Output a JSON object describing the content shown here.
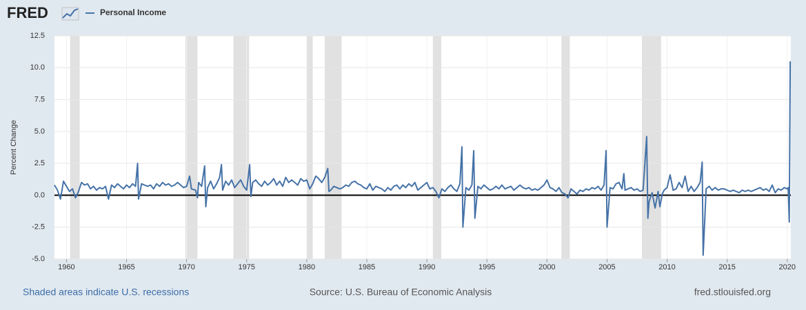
{
  "chart_data": {
    "type": "line",
    "logo": "FRED",
    "ylabel": "Percent Change",
    "note": "Shaded areas indicate U.S. recessions",
    "source": "Source: U.S. Bureau of Economic Analysis",
    "site": "fred.stlouisfed.org",
    "xlim": [
      1959.0,
      2020.3
    ],
    "xticks": [
      1960,
      1965,
      1970,
      1975,
      1980,
      1985,
      1990,
      1995,
      2000,
      2005,
      2010,
      2015,
      2020
    ],
    "ylim": [
      -5,
      12.5
    ],
    "yticks": [
      {
        "value": -5,
        "label": "-5.0"
      },
      -2.5,
      {
        "value": 0,
        "label": "0.0"
      },
      2.5,
      {
        "value": 5,
        "label": "5.0"
      },
      7.5,
      {
        "value": 10,
        "label": "10.0"
      },
      12.5
    ],
    "grid": true,
    "recession_color": "#e1e1e1",
    "recessions": [
      [
        1960.3,
        1961.1
      ],
      [
        1969.9,
        1970.9
      ],
      [
        1973.9,
        1975.2
      ],
      [
        1980.0,
        1980.5
      ],
      [
        1981.5,
        1982.9
      ],
      [
        1990.5,
        1991.2
      ],
      [
        2001.2,
        2001.9
      ],
      [
        2007.9,
        2009.5
      ]
    ],
    "x": [
      1959.0,
      1959.25,
      1959.5,
      1959.75,
      1960.0,
      1960.25,
      1960.5,
      1960.75,
      1961.0,
      1961.25,
      1961.5,
      1961.75,
      1962.0,
      1962.25,
      1962.5,
      1962.75,
      1963.0,
      1963.25,
      1963.5,
      1963.75,
      1964.0,
      1964.25,
      1964.5,
      1964.75,
      1965.0,
      1965.25,
      1965.5,
      1965.75,
      1965.92,
      1966.0,
      1966.25,
      1966.5,
      1966.75,
      1967.0,
      1967.25,
      1967.5,
      1967.75,
      1968.0,
      1968.25,
      1968.5,
      1968.75,
      1969.0,
      1969.25,
      1969.5,
      1969.75,
      1970.0,
      1970.25,
      1970.4,
      1970.75,
      1970.9,
      1971.0,
      1971.25,
      1971.5,
      1971.6,
      1971.75,
      1972.0,
      1972.25,
      1972.5,
      1972.75,
      1972.9,
      1973.0,
      1973.25,
      1973.5,
      1973.75,
      1974.0,
      1974.25,
      1974.5,
      1974.75,
      1975.0,
      1975.25,
      1975.35,
      1975.5,
      1975.75,
      1976.0,
      1976.25,
      1976.5,
      1976.75,
      1977.0,
      1977.25,
      1977.5,
      1977.75,
      1978.0,
      1978.25,
      1978.5,
      1978.75,
      1979.0,
      1979.25,
      1979.5,
      1979.75,
      1980.0,
      1980.25,
      1980.5,
      1980.75,
      1981.0,
      1981.25,
      1981.5,
      1981.75,
      1981.85,
      1982.0,
      1982.25,
      1982.5,
      1982.75,
      1983.0,
      1983.25,
      1983.5,
      1983.75,
      1984.0,
      1984.25,
      1984.5,
      1984.75,
      1985.0,
      1985.25,
      1985.5,
      1985.75,
      1986.0,
      1986.25,
      1986.5,
      1986.75,
      1987.0,
      1987.25,
      1987.5,
      1987.75,
      1988.0,
      1988.25,
      1988.5,
      1988.75,
      1989.0,
      1989.25,
      1989.5,
      1989.75,
      1990.0,
      1990.25,
      1990.5,
      1990.75,
      1991.0,
      1991.25,
      1991.5,
      1991.75,
      1992.0,
      1992.25,
      1992.5,
      1992.75,
      1992.92,
      1993.0,
      1993.25,
      1993.5,
      1993.75,
      1993.9,
      1994.0,
      1994.25,
      1994.5,
      1994.75,
      1995.0,
      1995.25,
      1995.5,
      1995.75,
      1996.0,
      1996.25,
      1996.5,
      1996.75,
      1997.0,
      1997.25,
      1997.5,
      1997.75,
      1998.0,
      1998.25,
      1998.5,
      1998.75,
      1999.0,
      1999.25,
      1999.5,
      1999.75,
      2000.0,
      2000.25,
      2000.5,
      2000.75,
      2001.0,
      2001.25,
      2001.5,
      2001.75,
      2002.0,
      2002.25,
      2002.5,
      2002.75,
      2003.0,
      2003.25,
      2003.5,
      2003.75,
      2004.0,
      2004.25,
      2004.5,
      2004.75,
      2004.92,
      2005.0,
      2005.25,
      2005.5,
      2005.75,
      2006.0,
      2006.25,
      2006.4,
      2006.5,
      2006.75,
      2007.0,
      2007.25,
      2007.5,
      2007.75,
      2008.0,
      2008.3,
      2008.4,
      2008.5,
      2008.75,
      2009.0,
      2009.25,
      2009.4,
      2009.6,
      2009.75,
      2010.0,
      2010.25,
      2010.5,
      2010.75,
      2011.0,
      2011.25,
      2011.5,
      2011.75,
      2012.0,
      2012.25,
      2012.5,
      2012.75,
      2012.92,
      2013.0,
      2013.25,
      2013.5,
      2013.75,
      2014.0,
      2014.25,
      2014.5,
      2014.75,
      2015.0,
      2015.25,
      2015.5,
      2015.75,
      2016.0,
      2016.25,
      2016.5,
      2016.75,
      2017.0,
      2017.25,
      2017.5,
      2017.75,
      2018.0,
      2018.25,
      2018.5,
      2018.75,
      2019.0,
      2019.25,
      2019.5,
      2019.75,
      2020.0,
      2020.08,
      2020.17,
      2020.25
    ],
    "series": [
      {
        "name": "Personal Income",
        "color": "#4572a7",
        "values": [
          0.8,
          0.4,
          -0.3,
          1.1,
          0.7,
          0.3,
          0.5,
          -0.2,
          0.3,
          1.0,
          0.8,
          0.9,
          0.5,
          0.7,
          0.4,
          0.6,
          0.5,
          0.7,
          -0.3,
          0.8,
          0.6,
          0.9,
          0.7,
          0.5,
          0.8,
          0.6,
          0.9,
          0.7,
          2.5,
          -0.3,
          0.9,
          0.8,
          0.7,
          0.8,
          0.5,
          0.9,
          0.7,
          1.0,
          0.8,
          0.9,
          0.7,
          0.8,
          1.0,
          0.8,
          0.6,
          0.7,
          1.5,
          0.5,
          0.4,
          -0.2,
          1.0,
          0.7,
          2.3,
          -0.9,
          0.6,
          1.1,
          0.5,
          0.9,
          1.4,
          2.4,
          0.4,
          1.1,
          0.8,
          1.2,
          0.6,
          0.9,
          1.2,
          0.7,
          0.4,
          2.4,
          -0.1,
          1.0,
          1.2,
          0.9,
          0.7,
          1.1,
          0.8,
          1.0,
          1.3,
          0.8,
          1.1,
          0.7,
          1.4,
          1.0,
          1.2,
          1.0,
          0.8,
          1.3,
          1.1,
          1.2,
          0.5,
          0.9,
          1.5,
          1.3,
          1.0,
          1.4,
          2.1,
          0.3,
          0.4,
          0.7,
          0.6,
          0.5,
          0.6,
          0.8,
          0.7,
          1.0,
          1.1,
          0.9,
          0.8,
          0.6,
          0.5,
          0.9,
          0.4,
          0.7,
          0.6,
          0.5,
          0.3,
          0.6,
          0.4,
          0.7,
          0.8,
          0.5,
          0.8,
          0.6,
          0.9,
          0.7,
          1.0,
          0.4,
          0.6,
          0.8,
          1.0,
          0.5,
          0.6,
          0.3,
          -0.2,
          0.5,
          0.3,
          0.6,
          0.8,
          0.5,
          0.3,
          0.9,
          3.8,
          -2.5,
          0.6,
          0.4,
          0.8,
          3.5,
          -1.8,
          0.7,
          0.5,
          0.8,
          0.6,
          0.4,
          0.5,
          0.7,
          0.5,
          0.8,
          0.5,
          0.6,
          0.7,
          0.4,
          0.6,
          0.8,
          0.6,
          0.5,
          0.6,
          0.4,
          0.5,
          0.4,
          0.6,
          0.8,
          1.2,
          0.6,
          0.5,
          0.3,
          0.6,
          0.2,
          0.1,
          -0.2,
          0.5,
          0.3,
          0.1,
          0.4,
          0.3,
          0.5,
          0.4,
          0.6,
          0.5,
          0.7,
          0.4,
          0.8,
          3.5,
          -2.5,
          0.6,
          0.5,
          0.9,
          1.0,
          0.5,
          1.7,
          0.4,
          0.5,
          0.6,
          0.4,
          0.5,
          0.3,
          0.4,
          4.6,
          -1.8,
          -0.5,
          0.2,
          -1.0,
          0.3,
          -0.9,
          0.1,
          0.4,
          0.6,
          1.6,
          0.4,
          0.5,
          1.0,
          0.6,
          1.5,
          0.3,
          0.7,
          0.3,
          0.6,
          1.0,
          2.6,
          -4.7,
          0.5,
          0.7,
          0.4,
          0.6,
          0.4,
          0.5,
          0.5,
          0.4,
          0.3,
          0.4,
          0.3,
          0.2,
          0.4,
          0.3,
          0.4,
          0.3,
          0.4,
          0.5,
          0.6,
          0.4,
          0.5,
          0.3,
          0.8,
          0.2,
          0.5,
          0.4,
          0.6,
          0.5,
          0.6,
          -2.1,
          10.5
        ]
      }
    ]
  }
}
